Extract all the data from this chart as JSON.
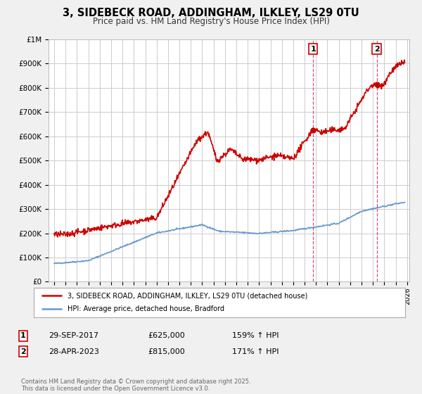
{
  "title": "3, SIDEBECK ROAD, ADDINGHAM, ILKLEY, LS29 0TU",
  "subtitle": "Price paid vs. HM Land Registry's House Price Index (HPI)",
  "background_color": "#f0f0f0",
  "plot_bg_color": "#ffffff",
  "red_color": "#cc0000",
  "blue_color": "#6699cc",
  "grid_color": "#cccccc",
  "annotation1": {
    "label": "1",
    "date_x": 2017.75,
    "price": 625000,
    "text": "29-SEP-2017",
    "price_str": "£625,000",
    "hpi_str": "159% ↑ HPI"
  },
  "annotation2": {
    "label": "2",
    "date_x": 2023.33,
    "price": 815000,
    "text": "28-APR-2023",
    "price_str": "£815,000",
    "hpi_str": "171% ↑ HPI"
  },
  "legend1": "3, SIDEBECK ROAD, ADDINGHAM, ILKLEY, LS29 0TU (detached house)",
  "legend2": "HPI: Average price, detached house, Bradford",
  "footer": "Contains HM Land Registry data © Crown copyright and database right 2025.\nThis data is licensed under the Open Government Licence v3.0.",
  "ylim": [
    0,
    1000000
  ],
  "xlim": [
    1994.5,
    2026.2
  ],
  "yticks": [
    0,
    100000,
    200000,
    300000,
    400000,
    500000,
    600000,
    700000,
    800000,
    900000,
    1000000
  ],
  "ytick_labels": [
    "£0",
    "£100K",
    "£200K",
    "£300K",
    "£400K",
    "£500K",
    "£600K",
    "£700K",
    "£800K",
    "£900K",
    "£1M"
  ],
  "xticks": [
    1995,
    1996,
    1997,
    1998,
    1999,
    2000,
    2001,
    2002,
    2003,
    2004,
    2005,
    2006,
    2007,
    2008,
    2009,
    2010,
    2011,
    2012,
    2013,
    2014,
    2015,
    2016,
    2017,
    2018,
    2019,
    2020,
    2021,
    2022,
    2023,
    2024,
    2025,
    2026
  ]
}
